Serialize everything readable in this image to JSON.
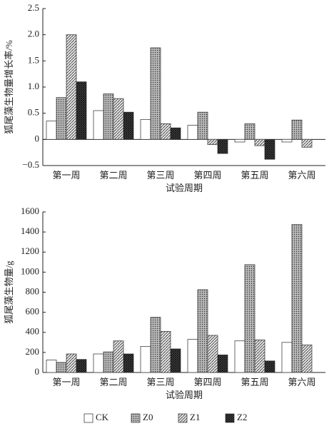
{
  "chart_data": [
    {
      "type": "bar",
      "y_label": "狐尾藻生物量增长率/%",
      "x_label": "试验周期",
      "categories": [
        "第一周",
        "第二周",
        "第三周",
        "第四周",
        "第五周",
        "第六周"
      ],
      "series": [
        {
          "color": "#ffffff",
          "values": [
            0.35,
            0.55,
            0.38,
            0.27,
            -0.05,
            -0.05
          ]
        },
        {
          "color": "#b8b8b8",
          "values": [
            0.8,
            0.87,
            1.75,
            0.52,
            0.3,
            0.37
          ]
        },
        {
          "color": "#e4e4e4",
          "values": [
            2.0,
            0.78,
            0.3,
            -0.1,
            -0.12,
            -0.15
          ]
        },
        {
          "color": "#555555",
          "values": [
            1.1,
            0.52,
            0.22,
            -0.27,
            -0.38,
            null
          ]
        }
      ],
      "ylim": [
        -0.5,
        2.5
      ],
      "yticks": [
        {
          "value": -0.5,
          "label": "−0.5"
        },
        0,
        0.5,
        {
          "value": 1,
          "label": "1.0"
        },
        1.5,
        {
          "value": 2,
          "label": "2.0"
        },
        2.5
      ]
    },
    {
      "type": "bar",
      "y_label": "狐尾藻生物量/g",
      "x_label": "试验周期",
      "categories": [
        "第一周",
        "第二周",
        "第三周",
        "第四周",
        "第五周",
        "第六周"
      ],
      "series": [
        {
          "name": "CK",
          "color": "#ffffff",
          "values": [
            125,
            185,
            260,
            330,
            315,
            300
          ]
        },
        {
          "name": "Z0",
          "color": "#b8b8b8",
          "values": [
            100,
            205,
            550,
            825,
            1075,
            1475
          ]
        },
        {
          "name": "Z1",
          "color": "#e4e4e4",
          "values": [
            185,
            315,
            410,
            370,
            325,
            275
          ]
        },
        {
          "name": "Z2",
          "color": "#555555",
          "values": [
            130,
            185,
            235,
            175,
            115,
            null
          ]
        }
      ],
      "ylim": [
        0,
        1600
      ],
      "yticks": [
        0,
        200,
        400,
        600,
        800,
        1000,
        1200,
        1400,
        1600
      ]
    }
  ]
}
